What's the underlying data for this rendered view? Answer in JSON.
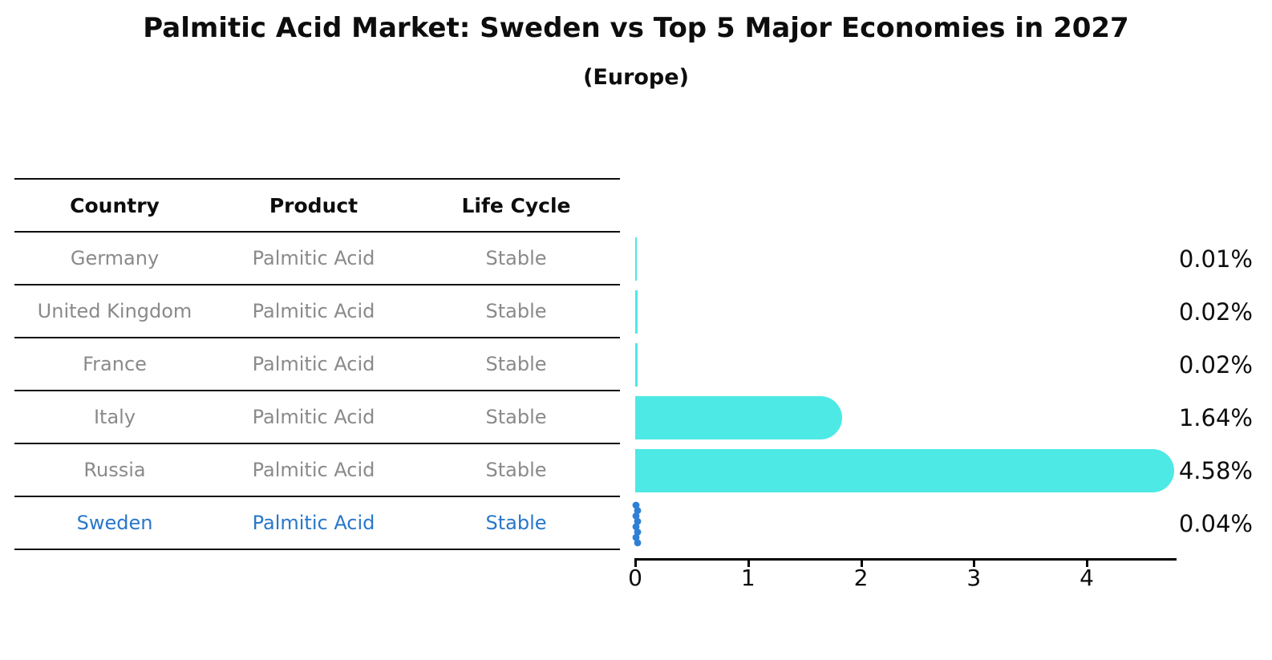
{
  "title": "Palmitic Acid Market: Sweden vs Top 5 Major Economies in 2027",
  "subtitle": "(Europe)",
  "table": {
    "headers": [
      "Country",
      "Product",
      "Life Cycle"
    ],
    "rows": [
      {
        "country": "Germany",
        "product": "Palmitic Acid",
        "life_cycle": "Stable",
        "value": 0.01,
        "label": "0.01%",
        "highlight": false,
        "marker": "bar"
      },
      {
        "country": "United Kingdom",
        "product": "Palmitic Acid",
        "life_cycle": "Stable",
        "value": 0.02,
        "label": "0.02%",
        "highlight": false,
        "marker": "bar"
      },
      {
        "country": "France",
        "product": "Palmitic Acid",
        "life_cycle": "Stable",
        "value": 0.02,
        "label": "0.02%",
        "highlight": false,
        "marker": "bar"
      },
      {
        "country": "Italy",
        "product": "Palmitic Acid",
        "life_cycle": "Stable",
        "value": 1.64,
        "label": "1.64%",
        "highlight": false,
        "marker": "bar"
      },
      {
        "country": "Russia",
        "product": "Palmitic Acid",
        "life_cycle": "Stable",
        "value": 4.58,
        "label": "4.58%",
        "highlight": false,
        "marker": "bar"
      },
      {
        "country": "Sweden",
        "product": "Palmitic Acid",
        "life_cycle": "Stable",
        "value": 0.04,
        "label": "0.04%",
        "highlight": true,
        "marker": "dotted"
      }
    ]
  },
  "chart_data": {
    "type": "bar",
    "orientation": "horizontal",
    "title": "Palmitic Acid Market: Sweden vs Top 5 Major Economies in 2027",
    "subtitle": "(Europe)",
    "categories": [
      "Germany",
      "United Kingdom",
      "France",
      "Italy",
      "Russia",
      "Sweden"
    ],
    "values": [
      0.01,
      0.02,
      0.02,
      1.64,
      4.58,
      0.04
    ],
    "value_labels": [
      "0.01%",
      "0.02%",
      "0.02%",
      "1.64%",
      "4.58%",
      "0.04%"
    ],
    "xlabel": "",
    "ylabel": "",
    "x_ticks": [
      0,
      1,
      2,
      3,
      4
    ],
    "xlim": [
      0,
      4.8
    ],
    "grid": false,
    "legend": "none",
    "highlight_category": "Sweden",
    "highlight_style": "blue-dotted-marker"
  },
  "colors": {
    "bar": "#4DE9E5",
    "highlight_text": "#2877c9",
    "highlight_dot": "#2E7FD6",
    "row_text": "#8a8a8a",
    "header_text": "#0d0d0d",
    "axis": "#000000"
  }
}
